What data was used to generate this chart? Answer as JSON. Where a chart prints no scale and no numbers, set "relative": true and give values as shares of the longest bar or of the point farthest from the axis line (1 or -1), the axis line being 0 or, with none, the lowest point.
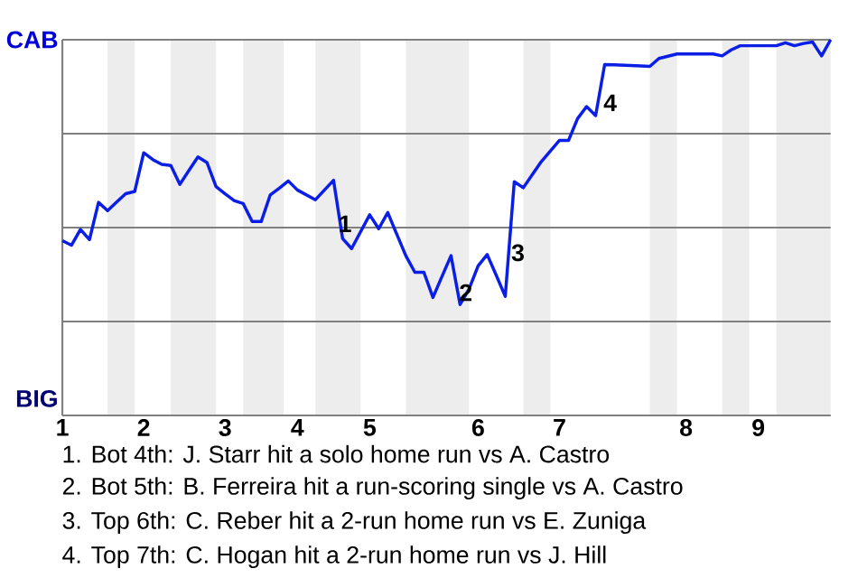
{
  "chart_data": {
    "type": "line",
    "relative": true,
    "categories": [
      "1",
      null,
      null,
      null,
      null,
      null,
      null,
      null,
      null,
      "2",
      null,
      null,
      null,
      null,
      null,
      null,
      null,
      null,
      "3",
      null,
      null,
      null,
      null,
      null,
      null,
      null,
      "4",
      null,
      null,
      null,
      null,
      null,
      null,
      null,
      "5",
      null,
      null,
      null,
      null,
      null,
      null,
      null,
      null,
      null,
      null,
      null,
      "6",
      null,
      null,
      null,
      null,
      null,
      null,
      null,
      null,
      "7",
      null,
      null,
      null,
      null,
      null,
      null,
      null,
      null,
      null,
      null,
      null,
      null,
      null,
      "8",
      null,
      null,
      null,
      null,
      null,
      null,
      null,
      "9",
      null,
      null,
      null,
      null,
      null,
      null,
      null,
      null
    ],
    "series": [
      {
        "color": "#0a1ee6",
        "values": [
          0.465,
          0.453,
          0.495,
          0.468,
          0.567,
          0.545,
          0.568,
          0.59,
          0.596,
          0.699,
          0.681,
          0.668,
          0.665,
          0.615,
          0.652,
          0.688,
          0.673,
          0.609,
          0.59,
          0.572,
          0.564,
          0.516,
          0.516,
          0.587,
          0.605,
          0.624,
          0.6,
          0.587,
          0.574,
          0.6,
          0.626,
          0.471,
          0.444,
          0.489,
          0.534,
          0.497,
          0.54,
          0.482,
          0.425,
          0.381,
          0.381,
          0.314,
          0.37,
          0.425,
          0.295,
          0.337,
          0.398,
          0.428,
          0.373,
          0.317,
          0.622,
          0.606,
          0.641,
          0.676,
          0.704,
          0.732,
          0.732,
          0.79,
          0.822,
          0.798,
          0.934,
          0.933,
          0.932,
          0.931,
          0.93,
          0.929,
          0.95,
          0.956,
          0.962,
          0.962,
          0.962,
          0.962,
          0.962,
          0.957,
          0.973,
          0.984,
          0.984,
          0.984,
          0.984,
          0.984,
          0.992,
          0.984,
          0.99,
          0.994,
          0.957,
          1.0
        ]
      }
    ],
    "grid": "y",
    "annotations": [
      "CAB",
      "BIG",
      "1",
      "2",
      "3",
      "4",
      "1. Bot 4th: J. Starr hit a solo home run vs A. Castro",
      "2. Bot 5th: B. Ferreira hit a run-scoring single vs A. Castro",
      "3. Top 6th: C. Reber hit a 2-run home run vs E. Zuniga",
      "4. Top 7th: C. Hogan hit a 2-run home run vs J. Hill"
    ]
  }
}
